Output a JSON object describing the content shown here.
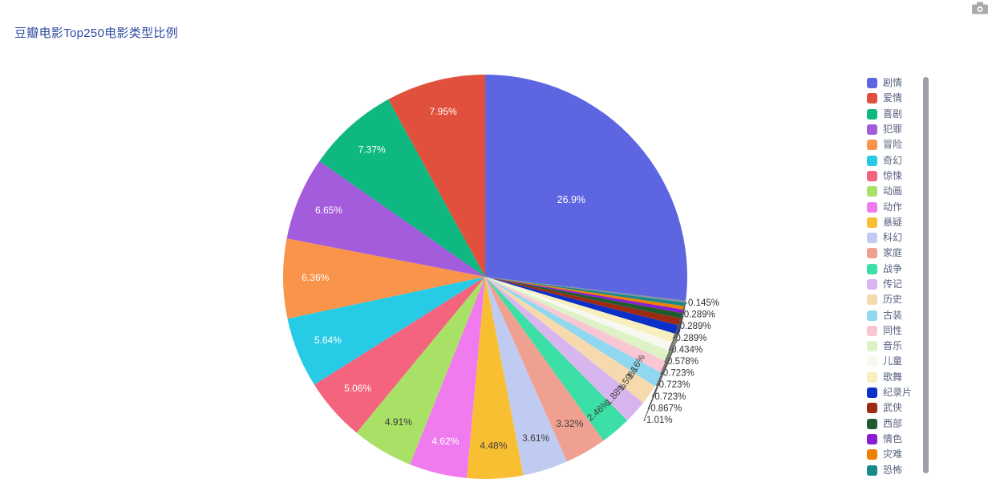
{
  "title": "豆瓣电影Top250电影类型比例",
  "title_color": "#2b4aa1",
  "toolbox": {
    "save_as_image_icon": "camera-icon"
  },
  "legend": {
    "position": "right",
    "items": [
      {
        "label": "剧情",
        "color": "#5e65e0"
      },
      {
        "label": "爱情",
        "color": "#e1503c"
      },
      {
        "label": "喜剧",
        "color": "#0fb881"
      },
      {
        "label": "犯罪",
        "color": "#a35ddc"
      },
      {
        "label": "冒险",
        "color": "#f9944a"
      },
      {
        "label": "奇幻",
        "color": "#27cbe5"
      },
      {
        "label": "惊悚",
        "color": "#f4647e"
      },
      {
        "label": "动画",
        "color": "#a9e066"
      },
      {
        "label": "动作",
        "color": "#ef7bee"
      },
      {
        "label": "悬疑",
        "color": "#f9bf33"
      },
      {
        "label": "科幻",
        "color": "#c0cbf2"
      },
      {
        "label": "家庭",
        "color": "#f0a090"
      },
      {
        "label": "战争",
        "color": "#3cdfa5"
      },
      {
        "label": "传记",
        "color": "#d7b6f0"
      },
      {
        "label": "历史",
        "color": "#f7d9ae"
      },
      {
        "label": "古装",
        "color": "#8fd8f0"
      },
      {
        "label": "同性",
        "color": "#f9c6d4"
      },
      {
        "label": "音乐",
        "color": "#def2c6"
      },
      {
        "label": "儿童",
        "color": "#f7f9f0"
      },
      {
        "label": "歌舞",
        "color": "#f7efbd"
      },
      {
        "label": "纪录片",
        "color": "#0b2fc9"
      },
      {
        "label": "武侠",
        "color": "#9c2a14"
      },
      {
        "label": "西部",
        "color": "#1d5c2e"
      },
      {
        "label": "情色",
        "color": "#8a1cd4"
      },
      {
        "label": "灾难",
        "color": "#ef8000"
      },
      {
        "label": "恐怖",
        "color": "#178a8c"
      }
    ]
  },
  "chart_data": {
    "type": "pie",
    "title": "豆瓣电影Top250电影类型比例",
    "legend_position": "right",
    "start_angle": 90,
    "direction": "clockwise",
    "slices": [
      {
        "name": "剧情",
        "percent": 26.9,
        "label": "26.9%",
        "color": "#5e65e0"
      },
      {
        "name": "",
        "percent": 0.145,
        "label": "0.145%",
        "color": "#89919b"
      },
      {
        "name": "恐怖",
        "percent": 0.289,
        "label": "0.289%",
        "color": "#178a8c"
      },
      {
        "name": "灾难",
        "percent": 0.289,
        "label": "0.289%",
        "color": "#ef8000"
      },
      {
        "name": "情色",
        "percent": 0.289,
        "label": "0.289%",
        "color": "#8a1cd4"
      },
      {
        "name": "西部",
        "percent": 0.434,
        "label": "0.434%",
        "color": "#1d5c2e"
      },
      {
        "name": "武侠",
        "percent": 0.578,
        "label": "0.578%",
        "color": "#9c2a14"
      },
      {
        "name": "纪录片",
        "percent": 0.723,
        "label": "0.723%",
        "color": "#0b2fc9"
      },
      {
        "name": "歌舞",
        "percent": 0.723,
        "label": "0.723%",
        "color": "#f7efbd"
      },
      {
        "name": "儿童",
        "percent": 0.723,
        "label": "0.723%",
        "color": "#f7f9f0"
      },
      {
        "name": "音乐",
        "percent": 0.867,
        "label": "0.867%",
        "color": "#def2c6"
      },
      {
        "name": "同性",
        "percent": 1.01,
        "label": "1.01%",
        "color": "#f9c6d4"
      },
      {
        "name": "古装",
        "percent": 1.16,
        "label": "1.16%",
        "color": "#8fd8f0"
      },
      {
        "name": "历史",
        "percent": 1.59,
        "label": "1.59%",
        "color": "#f7d9ae"
      },
      {
        "name": "传记",
        "percent": 1.88,
        "label": "1.88%",
        "color": "#d7b6f0"
      },
      {
        "name": "战争",
        "percent": 2.46,
        "label": "2.46%",
        "color": "#3cdfa5"
      },
      {
        "name": "家庭",
        "percent": 3.32,
        "label": "3.32%",
        "color": "#f0a090"
      },
      {
        "name": "科幻",
        "percent": 3.61,
        "label": "3.61%",
        "color": "#c0cbf2"
      },
      {
        "name": "悬疑",
        "percent": 4.48,
        "label": "4.48%",
        "color": "#f9bf33"
      },
      {
        "name": "动作",
        "percent": 4.62,
        "label": "4.62%",
        "color": "#ef7bee"
      },
      {
        "name": "动画",
        "percent": 4.91,
        "label": "4.91%",
        "color": "#a9e066"
      },
      {
        "name": "惊悚",
        "percent": 5.06,
        "label": "5.06%",
        "color": "#f4647e"
      },
      {
        "name": "奇幻",
        "percent": 5.64,
        "label": "5.64%",
        "color": "#27cbe5"
      },
      {
        "name": "冒险",
        "percent": 6.36,
        "label": "6.36%",
        "color": "#f9944a"
      },
      {
        "name": "犯罪",
        "percent": 6.65,
        "label": "6.65%",
        "color": "#a35ddc"
      },
      {
        "name": "喜剧",
        "percent": 7.37,
        "label": "7.37%",
        "color": "#0fb881"
      },
      {
        "name": "爱情",
        "percent": 7.95,
        "label": "7.95%",
        "color": "#e1503c"
      }
    ]
  }
}
